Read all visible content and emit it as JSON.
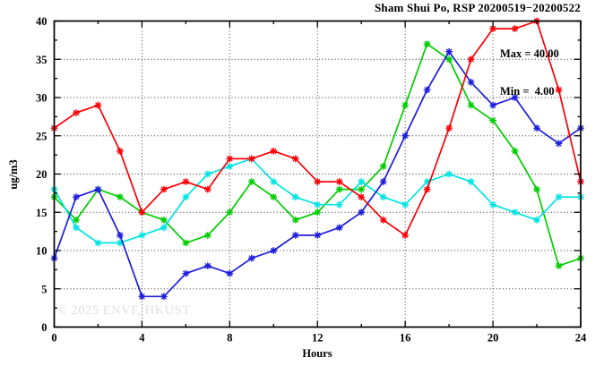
{
  "title": "Sham Shui Po, RSP 20200519−20200522",
  "watermark": "© 2025 ENVF, HKUST",
  "legend": {
    "max_label": "Max = 40.00",
    "min_label": "Min =  4.00"
  },
  "chart_data": {
    "type": "line",
    "title": "Sham Shui Po, RSP 20200519−20200522",
    "xlabel": "Hours",
    "ylabel": "ug/m3",
    "xlim": [
      0,
      24
    ],
    "ylim": [
      0,
      40
    ],
    "xticks": [
      0,
      4,
      8,
      12,
      16,
      20,
      24
    ],
    "x_minor_ticks": [
      2,
      6,
      10,
      14,
      18,
      22
    ],
    "yticks": [
      0,
      5,
      10,
      15,
      20,
      25,
      30,
      35,
      40
    ],
    "y_minor_step": 2.5,
    "grid": true,
    "legend_position": "top-right-inside",
    "max": 40.0,
    "min": 4.0,
    "x": [
      0,
      1,
      2,
      3,
      4,
      5,
      6,
      7,
      8,
      9,
      10,
      11,
      12,
      13,
      14,
      15,
      16,
      17,
      18,
      19,
      20,
      21,
      22,
      23,
      24
    ],
    "series": [
      {
        "name": "green-line",
        "color": "#00cd00",
        "values": [
          17,
          14,
          18,
          17,
          15,
          14,
          11,
          12,
          15,
          19,
          17,
          14,
          15,
          18,
          18,
          21,
          29,
          37,
          35,
          29,
          27,
          23,
          18,
          8,
          9
        ]
      },
      {
        "name": "cyan-line",
        "color": "#00e3e3",
        "values": [
          18,
          13,
          11,
          11,
          12,
          13,
          17,
          20,
          21,
          22,
          19,
          17,
          16,
          16,
          19,
          17,
          16,
          19,
          20,
          19,
          16,
          15,
          14,
          17,
          17
        ]
      },
      {
        "name": "blue-line",
        "color": "#1d1ddd",
        "values": [
          9,
          17,
          18,
          12,
          4,
          4,
          7,
          8,
          7,
          9,
          10,
          12,
          12,
          13,
          15,
          19,
          25,
          31,
          36,
          32,
          29,
          30,
          26,
          24,
          26
        ]
      },
      {
        "name": "red-line",
        "color": "#fb0006",
        "values": [
          26,
          28,
          29,
          23,
          15,
          18,
          19,
          18,
          22,
          22,
          23,
          22,
          19,
          19,
          17,
          14,
          12,
          18,
          26,
          35,
          39,
          39,
          40,
          31,
          19
        ]
      }
    ]
  }
}
